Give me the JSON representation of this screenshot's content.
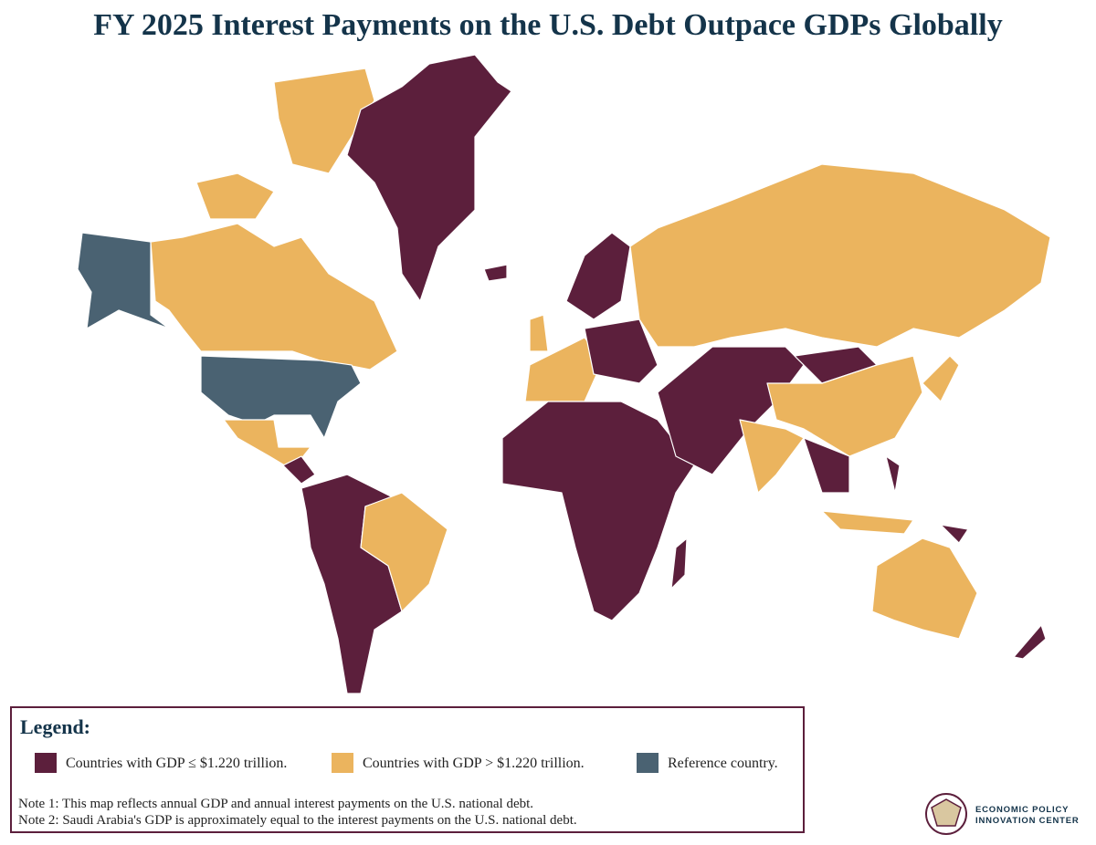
{
  "title": "FY 2025 Interest Payments on the U.S. Debt Outpace GDPs Globally",
  "legend": {
    "title": "Legend:",
    "items": [
      {
        "label": "Countries with GDP ≤ $1.220 trillion.",
        "color": "#5c1f3c"
      },
      {
        "label": "Countries with GDP > $1.220 trillion.",
        "color": "#ebb45e"
      },
      {
        "label": "Reference country.",
        "color": "#4a6272"
      }
    ]
  },
  "notes": [
    "Note 1: This map reflects annual GDP and annual interest payments on the U.S. national debt.",
    "Note 2: Saudi Arabia's GDP is approximately equal to the interest payments on the U.S. national debt."
  ],
  "logo": {
    "line1": "ECONOMIC POLICY",
    "line2": "INNOVATION CENTER"
  }
}
